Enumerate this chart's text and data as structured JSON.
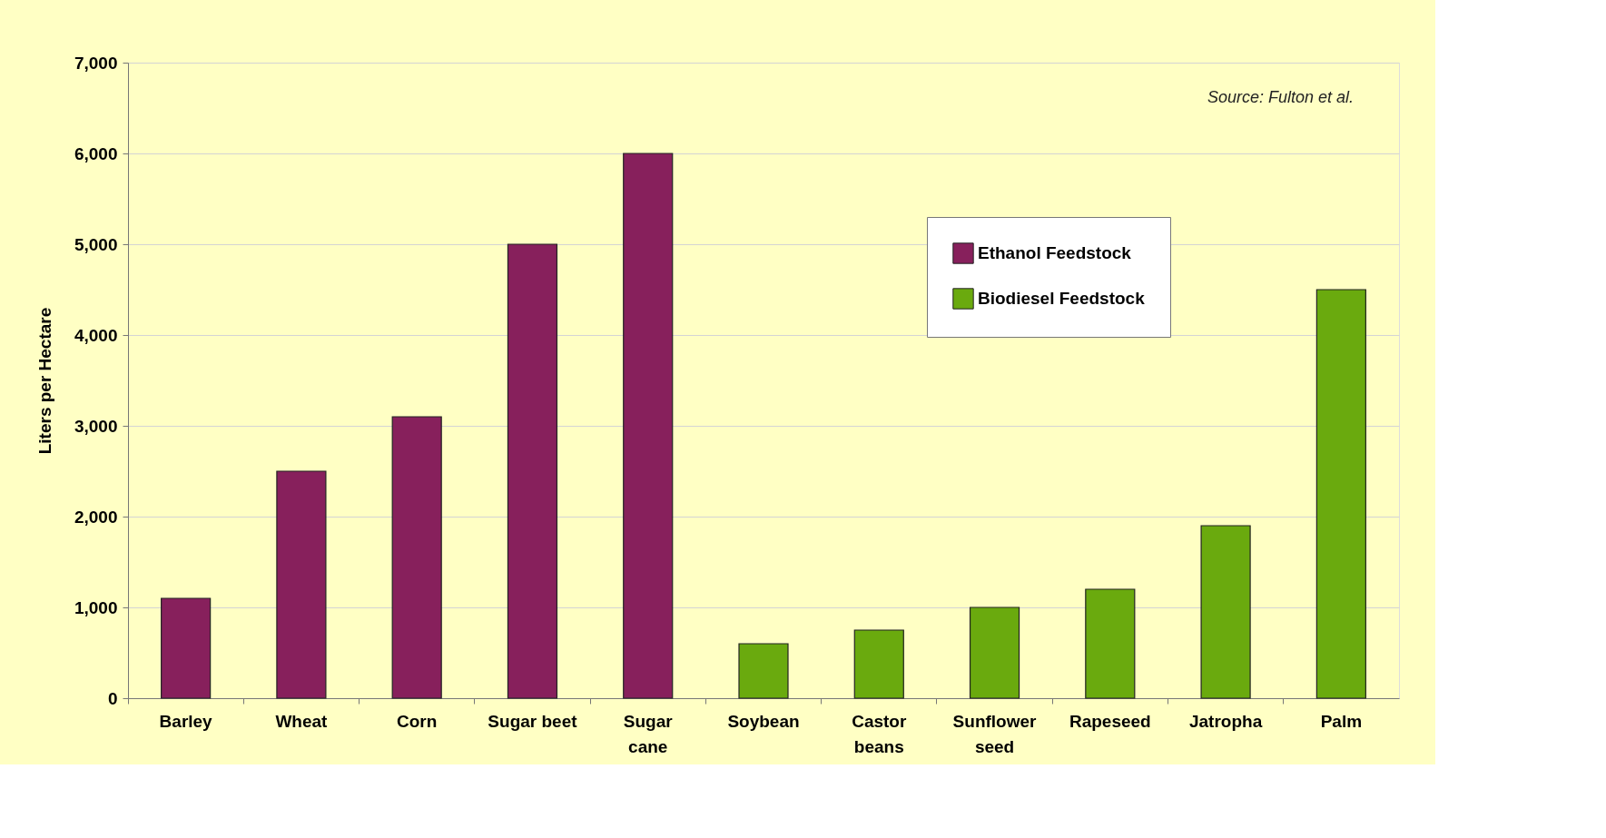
{
  "chart_data": {
    "type": "bar",
    "ylabel": "Liters per Hectare",
    "categories": [
      "Barley",
      "Wheat",
      "Corn",
      "Sugar beet",
      "Sugar\ncane",
      "Soybean",
      "Castor\nbeans",
      "Sunflower\nseed",
      "Rapeseed",
      "Jatropha",
      "Palm"
    ],
    "series": [
      {
        "name": "Ethanol Feedstock",
        "color": "#87205c",
        "values": [
          1100,
          2500,
          3100,
          5000,
          6000,
          null,
          null,
          null,
          null,
          null,
          null
        ]
      },
      {
        "name": "Biodiesel Feedstock",
        "color": "#6aaa0e",
        "values": [
          null,
          null,
          null,
          null,
          null,
          600,
          750,
          1000,
          1200,
          1900,
          4500
        ]
      }
    ],
    "ylim": [
      0,
      7000
    ],
    "yticks": [
      {
        "value": 0,
        "label": "0"
      },
      {
        "value": 1000,
        "label": "1,000"
      },
      {
        "value": 2000,
        "label": "2,000"
      },
      {
        "value": 3000,
        "label": "3,000"
      },
      {
        "value": 4000,
        "label": "4,000"
      },
      {
        "value": 5000,
        "label": "5,000"
      },
      {
        "value": 6000,
        "label": "6,000"
      },
      {
        "value": 7000,
        "label": "7,000"
      }
    ],
    "grid": "y",
    "legend": "top right",
    "annotations": [
      "Source:  Fulton et al."
    ]
  }
}
